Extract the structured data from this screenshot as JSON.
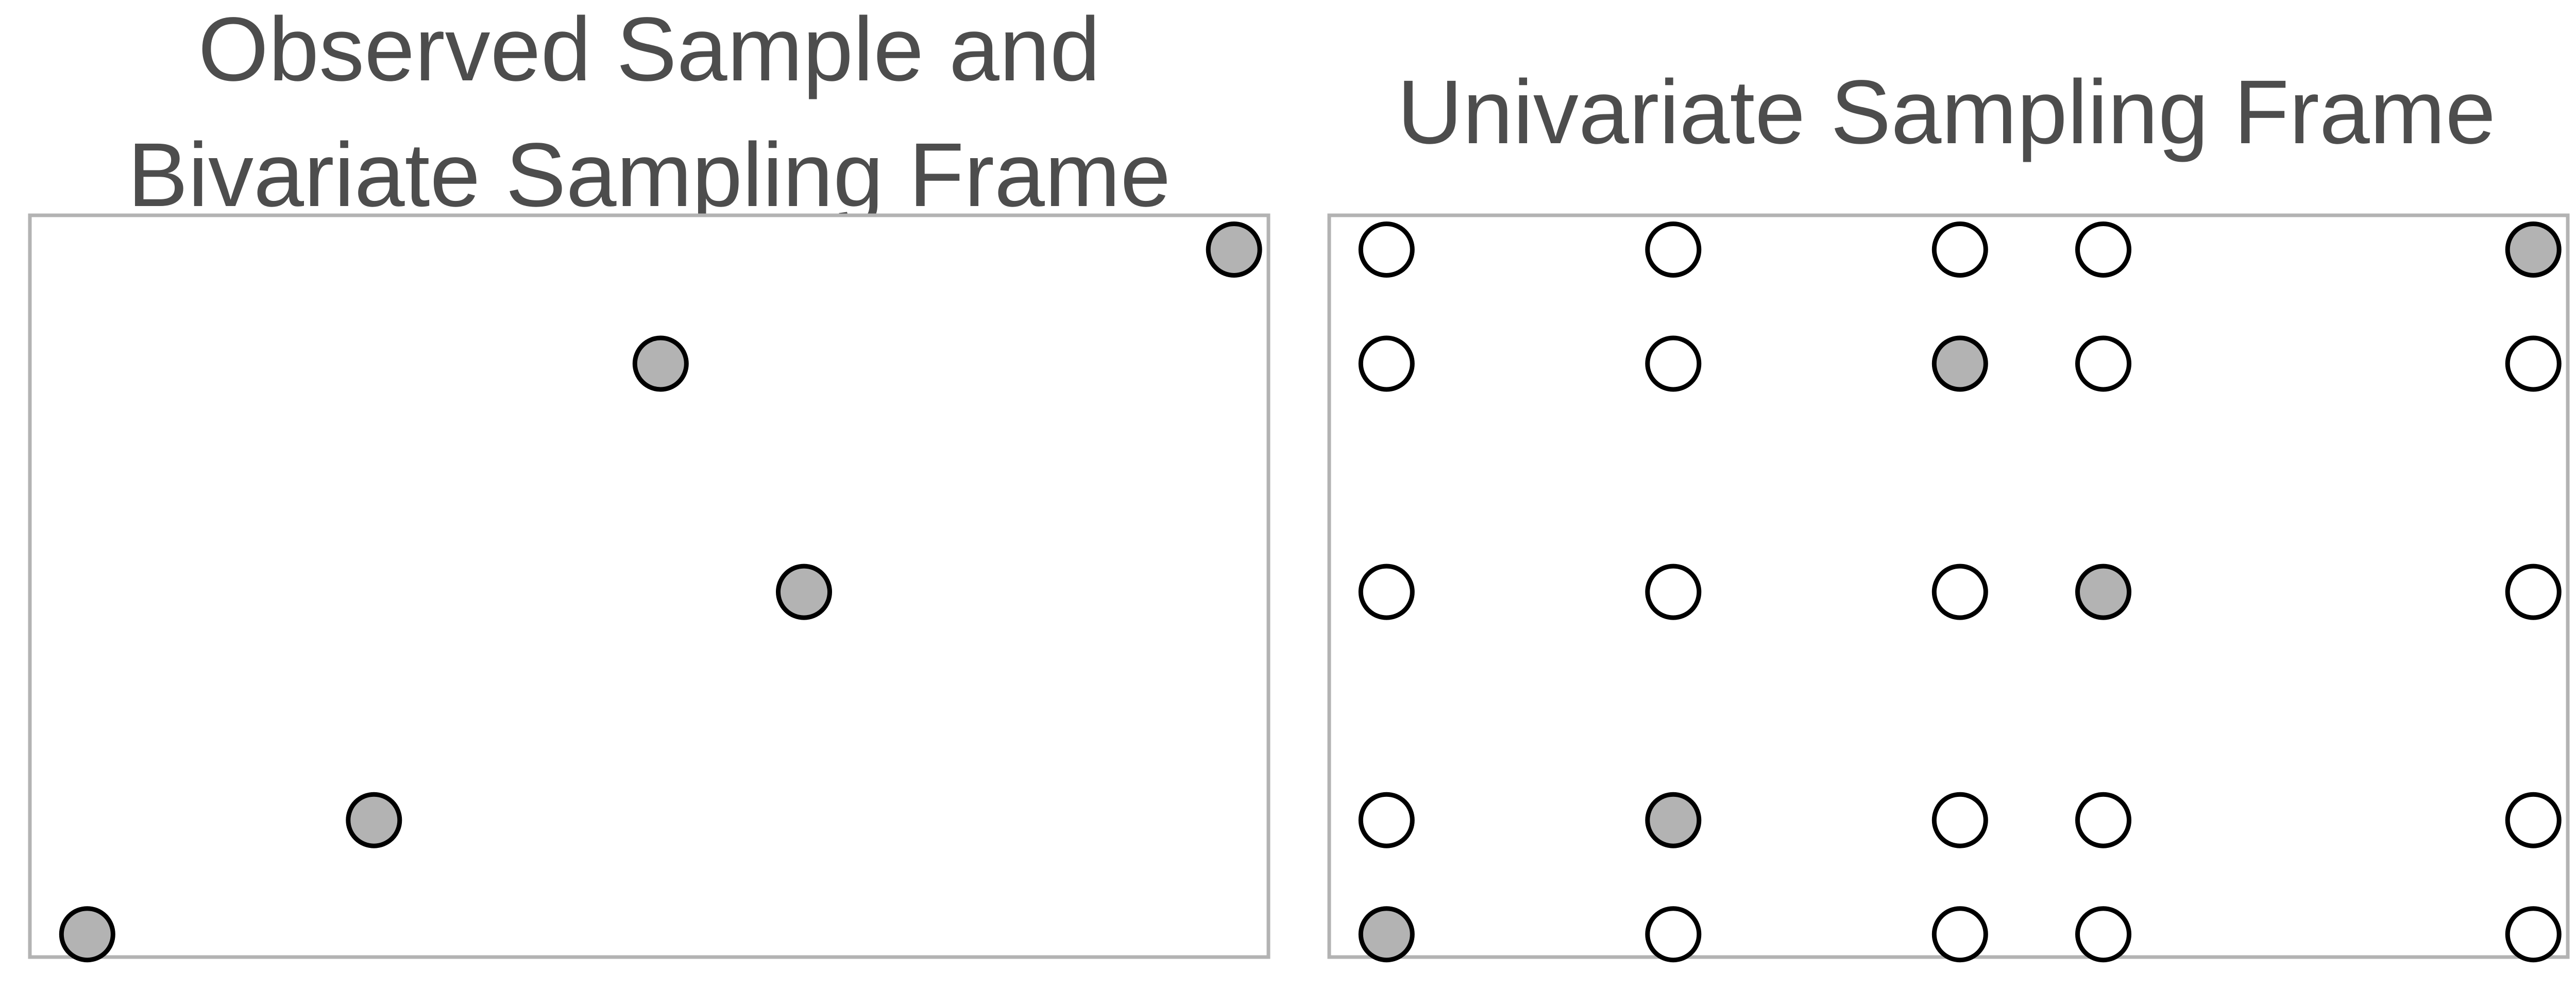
{
  "colors": {
    "observed_fill": "#b3b3b3",
    "frame_fill": "#ffffff",
    "point_stroke": "#000000",
    "panel_border": "#b3b3b3",
    "title_text": "#4d4d4d"
  },
  "chart_data": [
    {
      "type": "scatter",
      "title_lines": [
        "Observed Sample and",
        "Bivariate Sampling Frame"
      ],
      "xlabel": "",
      "ylabel": "",
      "grid": false,
      "legend": "none",
      "xlim": [
        0.6,
        9.24
      ],
      "ylim": [
        0.8,
        7.3
      ],
      "points": [
        {
          "x": 1,
          "y": 1,
          "observed": true
        },
        {
          "x": 3,
          "y": 2,
          "observed": true
        },
        {
          "x": 6,
          "y": 4,
          "observed": true
        },
        {
          "x": 5,
          "y": 6,
          "observed": true
        },
        {
          "x": 9,
          "y": 7,
          "observed": true
        }
      ]
    },
    {
      "type": "scatter",
      "title_lines": [
        "Univariate Sampling Frame"
      ],
      "xlabel": "",
      "ylabel": "",
      "grid": false,
      "legend": "none",
      "xlim": [
        0.6,
        9.24
      ],
      "ylim": [
        0.8,
        7.3
      ],
      "x_values": [
        1,
        3,
        5,
        6,
        9
      ],
      "y_values": [
        1,
        2,
        4,
        6,
        7
      ],
      "observed_pairs": [
        [
          1,
          1
        ],
        [
          3,
          2
        ],
        [
          6,
          4
        ],
        [
          5,
          6
        ],
        [
          9,
          7
        ]
      ]
    }
  ]
}
